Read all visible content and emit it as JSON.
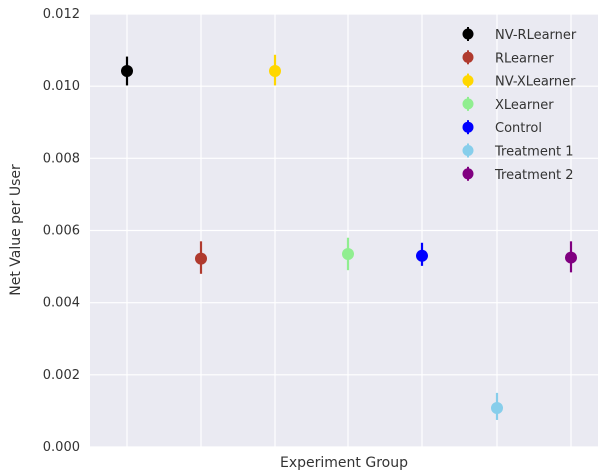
{
  "chart_data": {
    "type": "scatter",
    "title": "",
    "xlabel": "Experiment Group",
    "ylabel": "Net Value per User",
    "ylim": [
      0,
      0.012
    ],
    "yticks": [
      "0.000",
      "0.002",
      "0.004",
      "0.006",
      "0.008",
      "0.010",
      "0.012"
    ],
    "ytick_values": [
      0,
      0.002,
      0.004,
      0.006,
      0.008,
      0.01,
      0.012
    ],
    "grid": true,
    "legend_position": "top-right",
    "series": [
      {
        "name": "NV-RLearner",
        "color": "#000000",
        "x": 0,
        "y": 0.01042,
        "err_low": 0.01002,
        "err_high": 0.01082
      },
      {
        "name": "RLearner",
        "color": "#b03a2e",
        "x": 1,
        "y": 0.00522,
        "err_low": 0.0048,
        "err_high": 0.0057
      },
      {
        "name": "NV-XLearner",
        "color": "#ffd700",
        "x": 2,
        "y": 0.01042,
        "err_low": 0.01002,
        "err_high": 0.01087
      },
      {
        "name": "XLearner",
        "color": "#90ee90",
        "x": 3,
        "y": 0.00535,
        "err_low": 0.0049,
        "err_high": 0.0058
      },
      {
        "name": "Control",
        "color": "#0000ff",
        "x": 4,
        "y": 0.0053,
        "err_low": 0.00502,
        "err_high": 0.00566
      },
      {
        "name": "Treatment 1",
        "color": "#87ceeb",
        "x": 5,
        "y": 0.00108,
        "err_low": 0.00075,
        "err_high": 0.0015
      },
      {
        "name": "Treatment 2",
        "color": "#800080",
        "x": 6,
        "y": 0.00525,
        "err_low": 0.00484,
        "err_high": 0.0057
      }
    ]
  }
}
